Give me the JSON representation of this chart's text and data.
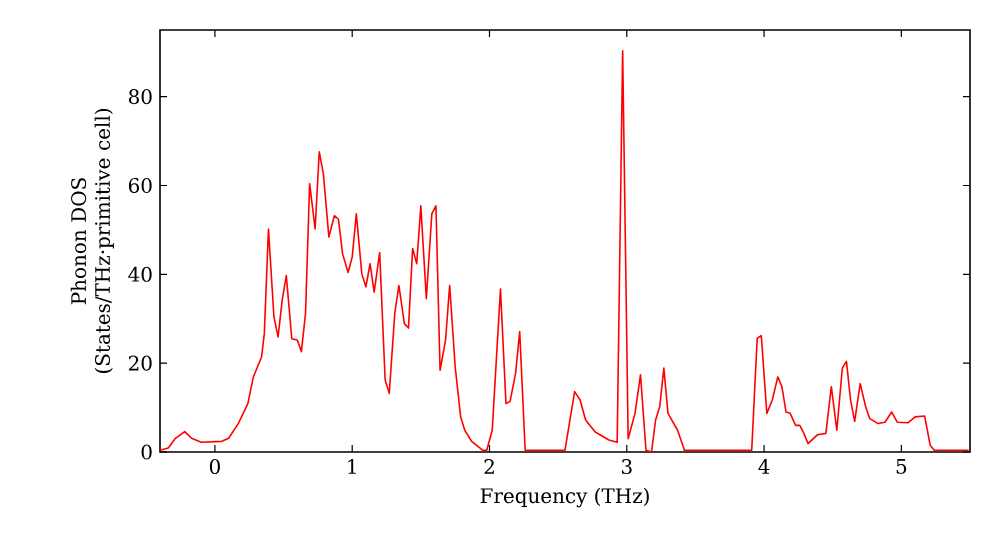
{
  "chart_data": {
    "type": "line",
    "xlabel": "Frequency (THz)",
    "ylabel": "Phonon DOS (States/THz·primitive cell)",
    "xlim": [
      -0.4,
      5.5
    ],
    "ylim": [
      0,
      95
    ],
    "xticks": [
      0,
      1,
      2,
      3,
      4,
      5
    ],
    "yticks": [
      0,
      20,
      40,
      60,
      80
    ],
    "series": [
      {
        "color": "#ff0000",
        "x": [
          -0.4,
          -0.34,
          -0.29,
          -0.22,
          -0.17,
          -0.1,
          0.05,
          0.1,
          0.17,
          0.24,
          0.28,
          0.34,
          0.36,
          0.39,
          0.43,
          0.46,
          0.49,
          0.52,
          0.56,
          0.6,
          0.63,
          0.66,
          0.69,
          0.73,
          0.76,
          0.79,
          0.83,
          0.87,
          0.9,
          0.93,
          0.97,
          1.0,
          1.03,
          1.07,
          1.1,
          1.13,
          1.16,
          1.2,
          1.24,
          1.27,
          1.31,
          1.34,
          1.38,
          1.41,
          1.44,
          1.47,
          1.5,
          1.54,
          1.58,
          1.61,
          1.64,
          1.68,
          1.71,
          1.75,
          1.79,
          1.82,
          1.87,
          1.95,
          1.98,
          2.02,
          2.08,
          2.12,
          2.15,
          2.19,
          2.22,
          2.26,
          2.55,
          2.62,
          2.66,
          2.7,
          2.77,
          2.87,
          2.93,
          2.97,
          3.01,
          3.06,
          3.1,
          3.14,
          3.18,
          3.21,
          3.24,
          3.27,
          3.3,
          3.37,
          3.42,
          3.91,
          3.95,
          3.98,
          4.02,
          4.06,
          4.1,
          4.13,
          4.16,
          4.19,
          4.23,
          4.26,
          4.29,
          4.32,
          4.39,
          4.45,
          4.49,
          4.53,
          4.57,
          4.6,
          4.63,
          4.66,
          4.7,
          4.74,
          4.77,
          4.83,
          4.88,
          4.93,
          4.97,
          5.05,
          5.1,
          5.17,
          5.21,
          5.24,
          5.49
        ],
        "values": [
          0.4,
          0.9,
          3,
          4.6,
          3.1,
          2.2,
          2.4,
          3.1,
          6.4,
          10.9,
          16.9,
          21.4,
          26.7,
          50.2,
          30.4,
          25.9,
          34.2,
          39.7,
          25.5,
          25.2,
          22.6,
          31.2,
          60.4,
          50.2,
          67.6,
          62.6,
          48.4,
          53.2,
          52.4,
          44.6,
          40.4,
          43.9,
          53.6,
          40.1,
          37.2,
          42.4,
          36,
          44.9,
          16.2,
          13.2,
          31.2,
          37.5,
          28.9,
          27.9,
          45.8,
          42.4,
          55.4,
          34.5,
          53.6,
          55.4,
          18.4,
          25.2,
          37.5,
          19.2,
          7.9,
          4.9,
          2.4,
          0.4,
          0.4,
          4.9,
          36.7,
          10.9,
          11.4,
          17.7,
          27.1,
          0.4,
          0.4,
          13.6,
          11.7,
          7.2,
          4.5,
          2.7,
          2.2,
          90.3,
          3,
          8.7,
          17.4,
          0.4,
          0,
          7.2,
          10.2,
          18.9,
          8.7,
          4.9,
          0.4,
          0.4,
          25.6,
          26.2,
          8.7,
          11.7,
          16.9,
          14.7,
          9,
          8.7,
          6,
          6,
          4.2,
          1.9,
          3.9,
          4.2,
          14.7,
          4.9,
          18.9,
          20.4,
          11.7,
          6.9,
          15.4,
          10.2,
          7.5,
          6.4,
          6.7,
          9,
          6.7,
          6.6,
          7.9,
          8.1,
          1.5,
          0.4,
          0.4
        ]
      }
    ]
  }
}
